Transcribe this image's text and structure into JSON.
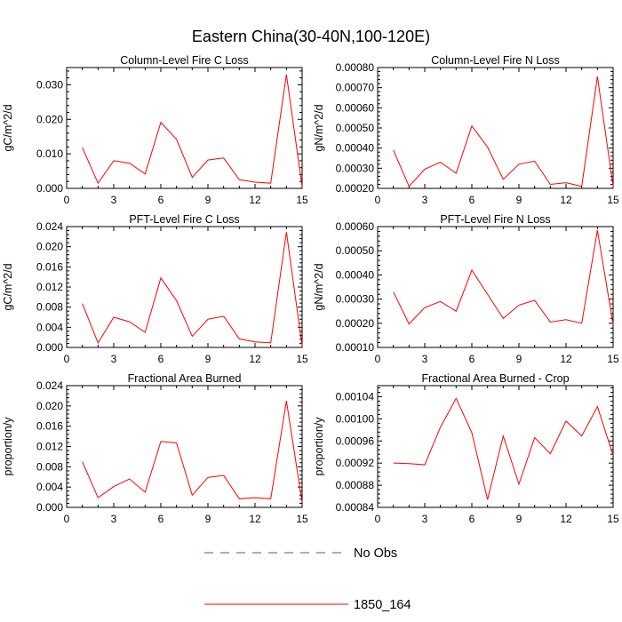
{
  "figure": {
    "title": "Eastern China(30-40N,100-120E)"
  },
  "legend": {
    "items": [
      {
        "label": "No Obs",
        "color": "#5050a0",
        "dash": true
      },
      {
        "label": "1850_164",
        "color": "#ff0000",
        "dash": false
      }
    ]
  },
  "chart_data": [
    {
      "type": "line",
      "title": "Column-Level Fire C Loss",
      "ylabel": "gC/m^2/d",
      "xlim": [
        0,
        15
      ],
      "ylim": [
        0,
        0.035
      ],
      "xticks": [
        "0",
        "3",
        "6",
        "9",
        "12",
        "15"
      ],
      "yticks": [
        "0.000",
        "0.010",
        "0.020",
        "0.030"
      ],
      "ytick_values": [
        0,
        0.01,
        0.02,
        0.03
      ],
      "series": [
        {
          "name": "1850_164",
          "x": [
            1,
            2,
            3,
            4,
            5,
            6,
            7,
            8,
            9,
            10,
            11,
            12,
            13,
            14,
            15
          ],
          "values": [
            0.0118,
            0.0015,
            0.008,
            0.0073,
            0.0042,
            0.0191,
            0.0142,
            0.0032,
            0.0082,
            0.0088,
            0.0025,
            0.0018,
            0.0015,
            0.033,
            0.0005
          ]
        }
      ]
    },
    {
      "type": "line",
      "title": "Column-Level Fire N Loss",
      "ylabel": "gN/m^2/d",
      "xlim": [
        0,
        15
      ],
      "ylim": [
        0.0002,
        0.0008
      ],
      "xticks": [
        "0",
        "3",
        "6",
        "9",
        "12",
        "15"
      ],
      "yticks": [
        "0.00020",
        "0.00030",
        "0.00040",
        "0.00050",
        "0.00060",
        "0.00070",
        "0.00080"
      ],
      "ytick_values": [
        0.0002,
        0.0003,
        0.0004,
        0.0005,
        0.0006,
        0.0007,
        0.0008
      ],
      "series": [
        {
          "name": "1850_164",
          "x": [
            1,
            2,
            3,
            4,
            5,
            6,
            7,
            8,
            9,
            10,
            11,
            12,
            13,
            14,
            15
          ],
          "values": [
            0.00039,
            0.00021,
            0.000295,
            0.00033,
            0.000275,
            0.00051,
            0.000405,
            0.000245,
            0.00032,
            0.000335,
            0.00022,
            0.000228,
            0.00021,
            0.000755,
            0.00021
          ]
        }
      ]
    },
    {
      "type": "line",
      "title": "PFT-Level Fire C Loss",
      "ylabel": "gC/m^2/d",
      "xlim": [
        0,
        15
      ],
      "ylim": [
        0,
        0.024
      ],
      "xticks": [
        "0",
        "3",
        "6",
        "9",
        "12",
        "15"
      ],
      "yticks": [
        "0.000",
        "0.004",
        "0.008",
        "0.012",
        "0.016",
        "0.020",
        "0.024"
      ],
      "ytick_values": [
        0,
        0.004,
        0.008,
        0.012,
        0.016,
        0.02,
        0.024
      ],
      "series": [
        {
          "name": "1850_164",
          "x": [
            1,
            2,
            3,
            4,
            5,
            6,
            7,
            8,
            9,
            10,
            11,
            12,
            13,
            14,
            15
          ],
          "values": [
            0.0087,
            0.0009,
            0.006,
            0.0051,
            0.003,
            0.0138,
            0.0093,
            0.0022,
            0.0056,
            0.0062,
            0.0017,
            0.0011,
            0.0009,
            0.0229,
            0.0003
          ]
        }
      ]
    },
    {
      "type": "line",
      "title": "PFT-Level Fire N Loss",
      "ylabel": "gN/m^2/d",
      "xlim": [
        0,
        15
      ],
      "ylim": [
        0.0001,
        0.0006
      ],
      "xticks": [
        "0",
        "3",
        "6",
        "9",
        "12",
        "15"
      ],
      "yticks": [
        "0.00010",
        "0.00020",
        "0.00030",
        "0.00040",
        "0.00050",
        "0.00060"
      ],
      "ytick_values": [
        0.0001,
        0.0002,
        0.0003,
        0.0004,
        0.0005,
        0.0006
      ],
      "series": [
        {
          "name": "1850_164",
          "x": [
            1,
            2,
            3,
            4,
            5,
            6,
            7,
            8,
            9,
            10,
            11,
            12,
            13,
            14,
            15
          ],
          "values": [
            0.00033,
            0.000197,
            0.000265,
            0.00029,
            0.00025,
            0.00042,
            0.00032,
            0.00022,
            0.000275,
            0.000295,
            0.000205,
            0.000215,
            0.0002,
            0.000585,
            0.000195
          ]
        }
      ]
    },
    {
      "type": "line",
      "title": "Fractional Area Burned",
      "ylabel": "proportion/y",
      "xlim": [
        0,
        15
      ],
      "ylim": [
        0,
        0.024
      ],
      "xticks": [
        "0",
        "3",
        "6",
        "9",
        "12",
        "15"
      ],
      "yticks": [
        "0.000",
        "0.004",
        "0.008",
        "0.012",
        "0.016",
        "0.020",
        "0.024"
      ],
      "ytick_values": [
        0,
        0.004,
        0.008,
        0.012,
        0.016,
        0.02,
        0.024
      ],
      "series": [
        {
          "name": "1850_164",
          "x": [
            1,
            2,
            3,
            4,
            5,
            6,
            7,
            8,
            9,
            10,
            11,
            12,
            13,
            14,
            15
          ],
          "values": [
            0.009,
            0.0019,
            0.0041,
            0.0056,
            0.003,
            0.013,
            0.0127,
            0.0024,
            0.0059,
            0.0063,
            0.0017,
            0.0019,
            0.0017,
            0.021,
            0.001
          ]
        }
      ]
    },
    {
      "type": "line",
      "title": "Fractional Area Burned - Crop",
      "ylabel": "proportion/y",
      "xlim": [
        0,
        15
      ],
      "ylim": [
        0.00084,
        0.00106
      ],
      "xticks": [
        "0",
        "3",
        "6",
        "9",
        "12",
        "15"
      ],
      "yticks": [
        "0.00084",
        "0.00088",
        "0.00092",
        "0.00096",
        "0.00100",
        "0.00104"
      ],
      "ytick_values": [
        0.00084,
        0.00088,
        0.00092,
        0.00096,
        0.001,
        0.00104
      ],
      "series": [
        {
          "name": "1850_164",
          "x": [
            1,
            2,
            3,
            4,
            5,
            6,
            7,
            8,
            9,
            10,
            11,
            12,
            13,
            14,
            15
          ],
          "values": [
            0.00092,
            0.000919,
            0.000917,
            0.000985,
            0.001037,
            0.000975,
            0.000854,
            0.000969,
            0.000882,
            0.000966,
            0.000937,
            0.000996,
            0.000969,
            0.001022,
            0.000934
          ]
        }
      ]
    }
  ]
}
